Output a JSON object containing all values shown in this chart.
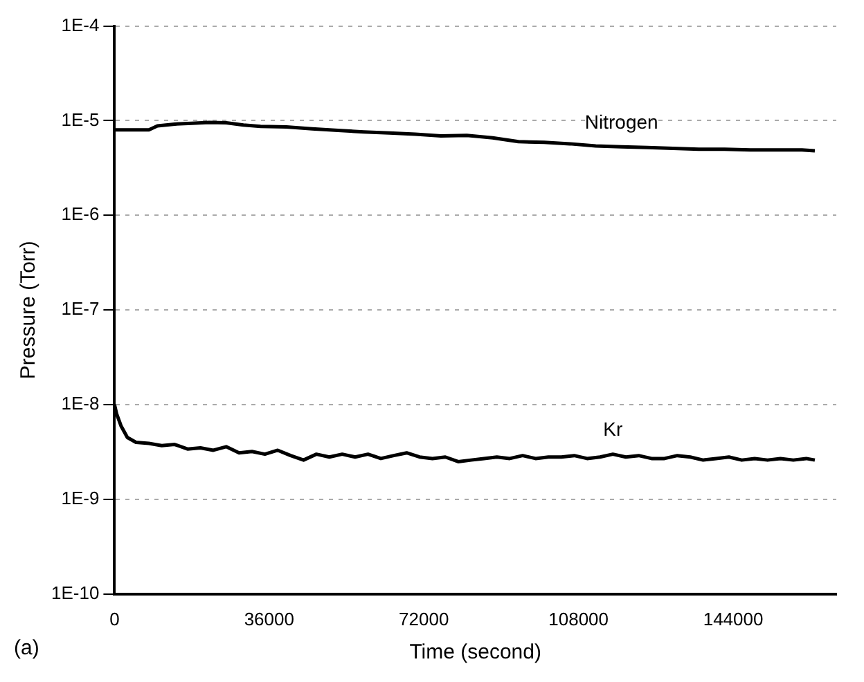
{
  "chart_data": {
    "type": "line",
    "xlabel": "Time (second)",
    "ylabel": "Pressure (Torr)",
    "log": "y",
    "grid": "y",
    "legend": false,
    "marker": "none",
    "line_style": "solid",
    "xlim": [
      0,
      168000
    ],
    "xticks": [
      0,
      36000,
      72000,
      108000,
      144000
    ],
    "ylim": [
      1e-10,
      0.0001
    ],
    "yticks": [
      {
        "value": 1e-10,
        "label": "1E-10"
      },
      {
        "value": 1e-09,
        "label": "1E-9"
      },
      {
        "value": 1e-08,
        "label": "1E-8"
      },
      {
        "value": 1e-07,
        "label": "1E-7"
      },
      {
        "value": 1e-06,
        "label": "1E-6"
      },
      {
        "value": 1e-05,
        "label": "1E-5"
      },
      {
        "value": 0.0001,
        "label": "1E-4"
      }
    ],
    "annotations": [
      "(a)"
    ],
    "series": [
      {
        "name": "Nitrogen",
        "color": "#000000",
        "x": [
          0,
          4000,
          8000,
          10000,
          14000,
          18000,
          22000,
          26000,
          30000,
          34000,
          40000,
          46000,
          52000,
          58000,
          64000,
          70000,
          76000,
          82000,
          88000,
          94000,
          100000,
          106000,
          112000,
          118000,
          124000,
          130000,
          136000,
          142000,
          148000,
          154000,
          160000,
          163000
        ],
        "values": [
          8e-06,
          8e-06,
          8e-06,
          8.8e-06,
          9.2e-06,
          9.4e-06,
          9.6e-06,
          9.5e-06,
          9e-06,
          8.7e-06,
          8.6e-06,
          8.2e-06,
          7.9e-06,
          7.6e-06,
          7.4e-06,
          7.2e-06,
          6.9e-06,
          7e-06,
          6.6e-06,
          6e-06,
          5.9e-06,
          5.7e-06,
          5.4e-06,
          5.3e-06,
          5.2e-06,
          5.1e-06,
          5e-06,
          5e-06,
          4.9e-06,
          4.9e-06,
          4.9e-06,
          4.8e-06
        ]
      },
      {
        "name": "Kr",
        "color": "#000000",
        "x": [
          0,
          500,
          1500,
          3000,
          5000,
          8000,
          11000,
          14000,
          17000,
          20000,
          23000,
          26000,
          29000,
          32000,
          35000,
          38000,
          41000,
          44000,
          47000,
          50000,
          53000,
          56000,
          59000,
          62000,
          65000,
          68000,
          71000,
          74000,
          77000,
          80000,
          83000,
          86000,
          89000,
          92000,
          95000,
          98000,
          101000,
          104000,
          107000,
          110000,
          113000,
          116000,
          119000,
          122000,
          125000,
          128000,
          131000,
          134000,
          137000,
          140000,
          143000,
          146000,
          149000,
          152000,
          155000,
          158000,
          161000,
          163000
        ],
        "values": [
          1e-08,
          8e-09,
          6e-09,
          4.5e-09,
          4e-09,
          3.9e-09,
          3.7e-09,
          3.8e-09,
          3.4e-09,
          3.5e-09,
          3.3e-09,
          3.6e-09,
          3.1e-09,
          3.2e-09,
          3e-09,
          3.3e-09,
          2.9e-09,
          2.6e-09,
          3e-09,
          2.8e-09,
          3e-09,
          2.8e-09,
          3e-09,
          2.7e-09,
          2.9e-09,
          3.1e-09,
          2.8e-09,
          2.7e-09,
          2.8e-09,
          2.5e-09,
          2.6e-09,
          2.7e-09,
          2.8e-09,
          2.7e-09,
          2.9e-09,
          2.7e-09,
          2.8e-09,
          2.8e-09,
          2.9e-09,
          2.7e-09,
          2.8e-09,
          3e-09,
          2.8e-09,
          2.9e-09,
          2.7e-09,
          2.7e-09,
          2.9e-09,
          2.8e-09,
          2.6e-09,
          2.7e-09,
          2.8e-09,
          2.6e-09,
          2.7e-09,
          2.6e-09,
          2.7e-09,
          2.6e-09,
          2.7e-09,
          2.6e-09
        ]
      }
    ]
  }
}
